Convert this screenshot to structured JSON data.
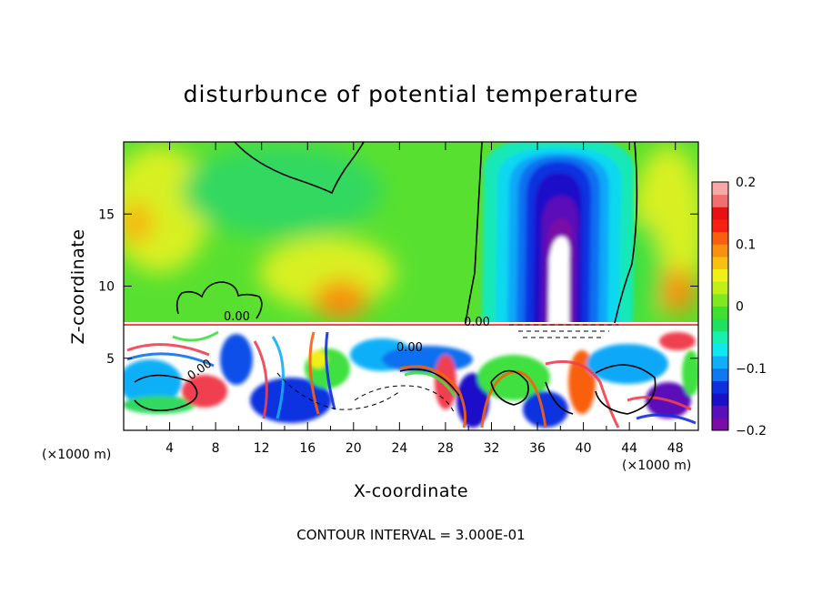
{
  "chart_data": {
    "type": "heatmap",
    "title": "disturbunce of potential temperature",
    "xlabel": "X-coordinate",
    "ylabel": "Z-coordinate",
    "x_unit_note": "(×1000 m)",
    "x_unit_note_right": "(×1000 m)",
    "footer": "CONTOUR INTERVAL = 3.000E-01",
    "xlim": [
      0,
      50
    ],
    "ylim": [
      0,
      20
    ],
    "x_ticks": [
      "4",
      "8",
      "12",
      "16",
      "20",
      "24",
      "28",
      "32",
      "36",
      "40",
      "44",
      "48"
    ],
    "x_tick_values": [
      4,
      8,
      12,
      16,
      20,
      24,
      28,
      32,
      36,
      40,
      44,
      48
    ],
    "y_ticks": [
      "5",
      "10",
      "15"
    ],
    "y_tick_values": [
      5,
      10,
      15
    ],
    "colorbar": {
      "range": [
        -0.2,
        0.2
      ],
      "tick_labels": [
        "0.2",
        "0.1",
        "0",
        "−0.1",
        "−0.2"
      ],
      "tick_values": [
        0.2,
        0.1,
        0,
        -0.1,
        -0.2
      ],
      "colors": [
        "#7a0ca8",
        "#5a10b8",
        "#1a10c8",
        "#1030e0",
        "#1078f0",
        "#10b0f8",
        "#10e8f0",
        "#18f0b0",
        "#20e060",
        "#40e030",
        "#80e820",
        "#c0f018",
        "#f0f018",
        "#f8c010",
        "#f89010",
        "#f86010",
        "#f82010",
        "#e81010",
        "#f07070",
        "#f8a8a8"
      ]
    },
    "contour_labels": [
      "0.00",
      "0.00",
      "0.00",
      "0.00"
    ],
    "grid": false,
    "legend": "colorbar-right"
  }
}
